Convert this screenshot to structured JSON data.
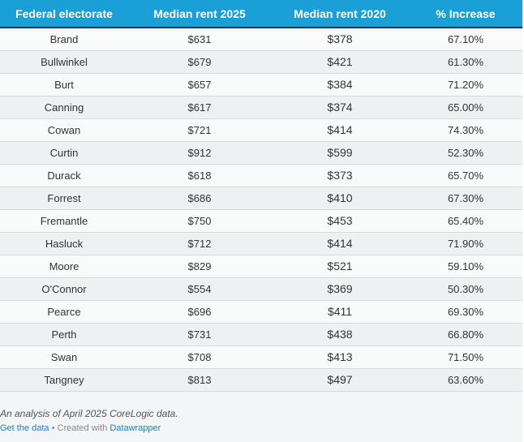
{
  "table": {
    "headers": [
      "Federal electorate",
      "Median rent 2025",
      "Median rent 2020",
      "% Increase"
    ],
    "rows": [
      [
        "Brand",
        "$631",
        "$378",
        "67.10%"
      ],
      [
        "Bullwinkel",
        "$679",
        "$421",
        "61.30%"
      ],
      [
        "Burt",
        "$657",
        "$384",
        "71.20%"
      ],
      [
        "Canning",
        "$617",
        "$374",
        "65.00%"
      ],
      [
        "Cowan",
        "$721",
        "$414",
        "74.30%"
      ],
      [
        "Curtin",
        "$912",
        "$599",
        "52.30%"
      ],
      [
        "Durack",
        "$618",
        "$373",
        "65.70%"
      ],
      [
        "Forrest",
        "$686",
        "$410",
        "67.30%"
      ],
      [
        "Fremantle",
        "$750",
        "$453",
        "65.40%"
      ],
      [
        "Hasluck",
        "$712",
        "$414",
        "71.90%"
      ],
      [
        "Moore",
        "$829",
        "$521",
        "59.10%"
      ],
      [
        "O'Connor",
        "$554",
        "$369",
        "50.30%"
      ],
      [
        "Pearce",
        "$696",
        "$411",
        "69.30%"
      ],
      [
        "Perth",
        "$731",
        "$438",
        "66.80%"
      ],
      [
        "Swan",
        "$708",
        "$413",
        "71.50%"
      ],
      [
        "Tangney",
        "$813",
        "$497",
        "63.60%"
      ]
    ]
  },
  "footer": {
    "note": "An analysis of April 2025 CoreLogic data.",
    "get_data": "Get the data",
    "separator": " • Created with ",
    "datawrapper": "Datawrapper"
  },
  "colors": {
    "header_bg": "#1a9fd6",
    "link": "#1d7fbf"
  }
}
